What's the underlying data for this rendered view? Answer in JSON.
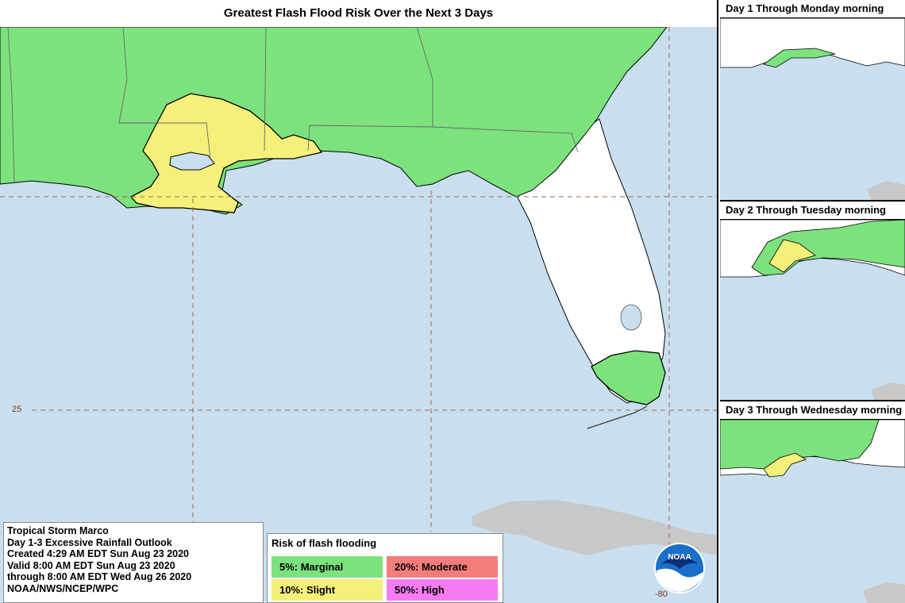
{
  "title": "Greatest Flash Flood Risk Over the Next 3 Days",
  "labels": {
    "lat_25": "25",
    "lon_80": "-80"
  },
  "colors": {
    "water": "#c9dff0",
    "land": "#ffffff",
    "marginal": "#7ce27e",
    "slight": "#f5f07a",
    "moderate": "#f47d7b",
    "high": "#f77cf0",
    "cuba": "#c8c8c8",
    "grid": "#9a6a50"
  },
  "insets": [
    {
      "title": "Day 1 Through Monday morning"
    },
    {
      "title": "Day 2 Through Tuesday morning"
    },
    {
      "title": "Day 3 Through Wednesday morning"
    }
  ],
  "info": {
    "line1": "Tropical Storm Marco",
    "line2": "Day 1-3 Excessive Rainfall Outlook",
    "line3": "Created 4:29 AM EDT Sun Aug 23 2020",
    "line4": "Valid 8:00 AM EDT Sun Aug 23 2020",
    "line5": "through 8:00 AM EDT Wed Aug 26 2020",
    "line6": "NOAA/NWS/NCEP/WPC"
  },
  "legend": {
    "title": "Risk of flash flooding",
    "items": [
      {
        "label": "5%: Marginal",
        "color": "#7ce27e"
      },
      {
        "label": "20%: Moderate",
        "color": "#f47d7b"
      },
      {
        "label": "10%: Slight",
        "color": "#f5f07a"
      },
      {
        "label": "50%: High",
        "color": "#f77cf0"
      }
    ]
  },
  "logo_text": "NOAA"
}
